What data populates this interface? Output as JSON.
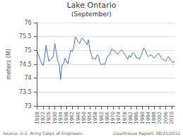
{
  "chart_data": {
    "type": "line",
    "title": "Lake Ontario",
    "subtitle": "(September)",
    "ylabel": "meters (M)",
    "annotations": [
      "Source: U.S. Army Corps of Engineers",
      "Courthouse Report: 08/31/2012"
    ],
    "color": "#4472c4",
    "grid": true,
    "xlim": [
      1918,
      2012
    ],
    "xticks": [
      1918,
      1922,
      1926,
      1930,
      1934,
      1938,
      1942,
      1946,
      1950,
      1954,
      1958,
      1962,
      1966,
      1970,
      1974,
      1978,
      1982,
      1986,
      1990,
      1994,
      1998,
      2002,
      2006,
      2010
    ],
    "ylim": [
      73,
      76
    ],
    "yticks": [
      73,
      73.5,
      74,
      74.5,
      75,
      75.5,
      76
    ],
    "x": [
      1918,
      1919,
      1920,
      1921,
      1922,
      1923,
      1924,
      1925,
      1926,
      1927,
      1928,
      1929,
      1930,
      1931,
      1932,
      1933,
      1934,
      1935,
      1936,
      1937,
      1938,
      1939,
      1940,
      1941,
      1942,
      1943,
      1944,
      1945,
      1946,
      1947,
      1948,
      1949,
      1950,
      1951,
      1952,
      1953,
      1954,
      1955,
      1956,
      1957,
      1958,
      1959,
      1960,
      1961,
      1962,
      1963,
      1964,
      1965,
      1966,
      1967,
      1968,
      1969,
      1970,
      1971,
      1972,
      1973,
      1974,
      1975,
      1976,
      1977,
      1978,
      1979,
      1980,
      1981,
      1982,
      1983,
      1984,
      1985,
      1986,
      1987,
      1988,
      1989,
      1990,
      1991,
      1992,
      1993,
      1994,
      1995,
      1996,
      1997,
      1998,
      1999,
      2000,
      2001,
      2002,
      2003,
      2004,
      2005,
      2006,
      2007,
      2008,
      2009,
      2010,
      2011,
      2012
    ],
    "values": [
      74.98,
      74.82,
      74.65,
      74.55,
      74.45,
      74.72,
      75.18,
      74.87,
      74.6,
      74.68,
      74.72,
      74.8,
      75.25,
      74.95,
      74.62,
      74.52,
      73.95,
      74.48,
      74.52,
      74.72,
      74.62,
      74.52,
      74.78,
      75.0,
      74.95,
      75.12,
      75.48,
      75.42,
      75.3,
      75.25,
      75.4,
      75.45,
      75.35,
      75.3,
      75.2,
      75.38,
      75.05,
      74.85,
      74.68,
      74.72,
      74.68,
      74.85,
      74.78,
      74.55,
      74.48,
      74.52,
      74.48,
      74.62,
      74.78,
      74.82,
      74.9,
      75.05,
      75.0,
      74.98,
      74.9,
      74.85,
      74.92,
      74.98,
      75.02,
      74.95,
      74.85,
      74.78,
      74.68,
      74.82,
      74.75,
      74.88,
      74.92,
      74.85,
      74.72,
      74.75,
      74.68,
      74.8,
      74.95,
      75.08,
      75.02,
      74.85,
      74.78,
      74.82,
      74.85,
      74.78,
      74.72,
      74.78,
      74.85,
      74.9,
      74.82,
      74.72,
      74.68,
      74.65,
      74.6,
      74.72,
      74.78,
      74.68,
      74.62,
      74.55,
      74.62
    ]
  }
}
